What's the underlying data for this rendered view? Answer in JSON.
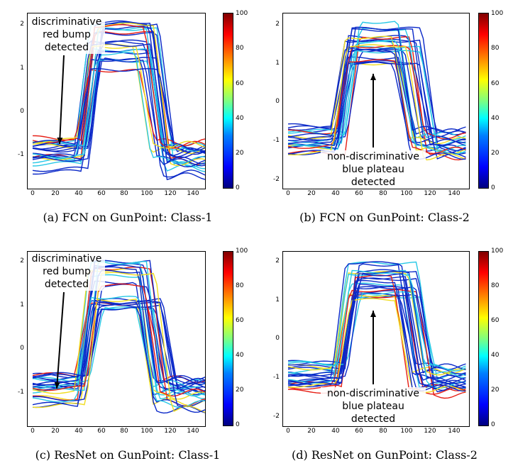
{
  "panels": [
    {
      "caption": "(a) FCN on GunPoint: Class-1",
      "annotation": [
        "discriminative",
        "red bump",
        "detected"
      ],
      "y_ticks": [
        "2",
        "1",
        "0",
        "-1"
      ],
      "x_ticks": [
        "0",
        "20",
        "40",
        "60",
        "80",
        "100",
        "120",
        "140"
      ],
      "cbar_ticks": [
        "100",
        "80",
        "60",
        "40",
        "20",
        "0"
      ]
    },
    {
      "caption": "(b) FCN on GunPoint: Class-2",
      "annotation": [
        "non-discriminative",
        "blue plateau",
        "detected"
      ],
      "y_ticks": [
        "2",
        "1",
        "0",
        "-1",
        "-2"
      ],
      "x_ticks": [
        "0",
        "20",
        "40",
        "60",
        "80",
        "100",
        "120",
        "140"
      ],
      "cbar_ticks": [
        "100",
        "80",
        "60",
        "40",
        "20",
        "0"
      ]
    },
    {
      "caption": "(c) ResNet on GunPoint: Class-1",
      "annotation": [
        "discriminative",
        "red bump",
        "detected"
      ],
      "y_ticks": [
        "2",
        "1",
        "0",
        "-1"
      ],
      "x_ticks": [
        "0",
        "20",
        "40",
        "60",
        "80",
        "100",
        "120",
        "140"
      ],
      "cbar_ticks": [
        "100",
        "80",
        "60",
        "40",
        "20",
        "0"
      ]
    },
    {
      "caption": "(d) ResNet on GunPoint: Class-2",
      "annotation": [
        "non-discriminative",
        "blue plateau",
        "detected"
      ],
      "y_ticks": [
        "2",
        "1",
        "0",
        "-1",
        "-2"
      ],
      "x_ticks": [
        "0",
        "20",
        "40",
        "60",
        "80",
        "100",
        "120",
        "140"
      ],
      "cbar_ticks": [
        "100",
        "80",
        "60",
        "40",
        "20",
        "0"
      ]
    }
  ],
  "colors": {
    "line_blue": "#0a28c8",
    "line_cyan": "#28c8e6",
    "line_red": "#e61e14",
    "line_yellow": "#f0dc1e"
  }
}
